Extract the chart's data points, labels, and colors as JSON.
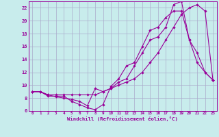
{
  "xlabel": "Windchill (Refroidissement éolien,°C)",
  "bg_color": "#c8ecec",
  "line_color": "#990099",
  "grid_color": "#aaaacc",
  "xlim": [
    -0.5,
    23.5
  ],
  "ylim": [
    6,
    23
  ],
  "xticks": [
    0,
    1,
    2,
    3,
    4,
    5,
    6,
    7,
    8,
    9,
    10,
    11,
    12,
    13,
    14,
    15,
    16,
    17,
    18,
    19,
    20,
    21,
    22,
    23
  ],
  "yticks": [
    6,
    8,
    10,
    12,
    14,
    16,
    18,
    20,
    22
  ],
  "line1_x": [
    0,
    1,
    2,
    3,
    4,
    5,
    6,
    7,
    8,
    9,
    10,
    11,
    12,
    13,
    14,
    15,
    16,
    17,
    18,
    19,
    20,
    21,
    22,
    23
  ],
  "line1_y": [
    9.0,
    9.0,
    8.3,
    8.3,
    8.3,
    7.5,
    7.0,
    6.5,
    6.2,
    7.0,
    9.8,
    11.0,
    13.0,
    13.5,
    16.0,
    18.5,
    19.0,
    20.5,
    21.5,
    21.5,
    17.0,
    13.5,
    12.0,
    10.8
  ],
  "line2_x": [
    0,
    1,
    2,
    3,
    4,
    5,
    6,
    7,
    8,
    9,
    10,
    11,
    12,
    13,
    14,
    15,
    16,
    17,
    18,
    19,
    20,
    21,
    22,
    23
  ],
  "line2_y": [
    9.0,
    9.0,
    8.5,
    8.5,
    8.5,
    8.5,
    8.5,
    8.5,
    8.5,
    9.0,
    9.5,
    10.0,
    10.5,
    11.0,
    12.0,
    13.5,
    15.0,
    17.0,
    19.0,
    21.0,
    22.0,
    22.5,
    21.5,
    10.8
  ],
  "line3_x": [
    0,
    1,
    2,
    3,
    4,
    5,
    6,
    7,
    8,
    9,
    10,
    11,
    12,
    13,
    14,
    15,
    16,
    17,
    18,
    19,
    20,
    21,
    22,
    23
  ],
  "line3_y": [
    9.0,
    9.0,
    8.5,
    8.2,
    8.0,
    7.8,
    7.5,
    6.8,
    9.5,
    9.0,
    9.5,
    10.5,
    11.0,
    13.0,
    15.0,
    17.0,
    17.5,
    19.0,
    22.5,
    23.0,
    17.0,
    15.0,
    12.0,
    10.8
  ]
}
